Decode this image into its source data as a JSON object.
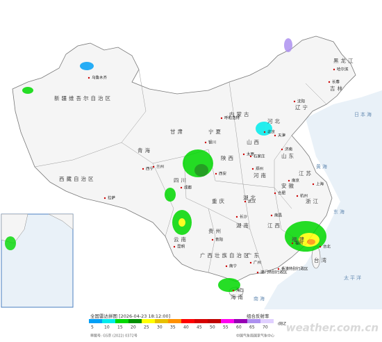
{
  "map": {
    "provinces": [
      "黑龙江",
      "吉林",
      "辽宁",
      "内蒙古",
      "新疆维吾尔自治区",
      "西藏自治区",
      "青海",
      "甘肃",
      "宁夏",
      "陕西",
      "山西",
      "河北",
      "山东",
      "河南",
      "江苏",
      "安徽",
      "湖北",
      "四川",
      "重庆",
      "贵州",
      "云南",
      "湖南",
      "江西",
      "浙江",
      "福建",
      "台湾",
      "广东",
      "广西壮族自治区",
      "海南"
    ],
    "cities": [
      "哈尔滨",
      "长春",
      "沈阳",
      "呼和浩特",
      "乌鲁木齐",
      "拉萨",
      "西宁",
      "兰州",
      "银川",
      "西安",
      "太原",
      "石家庄",
      "北京",
      "天津",
      "济南",
      "郑州",
      "南京",
      "上海",
      "合肥",
      "武汉",
      "成都",
      "贵阳",
      "昆明",
      "长沙",
      "南昌",
      "杭州",
      "福州",
      "台北",
      "广州",
      "南宁",
      "海口",
      "香港特别行政区",
      "澳门特别行政区"
    ],
    "seas": [
      "日本海",
      "黄海",
      "东海",
      "太平洋",
      "南海"
    ]
  },
  "legend": {
    "title": "全国雷达拼图 [2026-04-23 18:12:00]",
    "product": "组合反射率",
    "unit": "dBZ",
    "ticks": [
      5,
      10,
      15,
      20,
      25,
      30,
      35,
      40,
      45,
      50,
      55,
      60,
      65,
      70
    ],
    "colors": [
      "#01a0f6",
      "#00ecec",
      "#00d800",
      "#019000",
      "#ffff00",
      "#e7c000",
      "#ff9000",
      "#ff0000",
      "#d60000",
      "#c00000",
      "#ff00f0",
      "#9600b4",
      "#ad90f0",
      "#e0d0ff"
    ]
  },
  "footer": {
    "approval": "审图号: GS京 (2022) 0372号",
    "source": "中国气象局国家气象中心",
    "watermark": "weather.com.cn"
  }
}
